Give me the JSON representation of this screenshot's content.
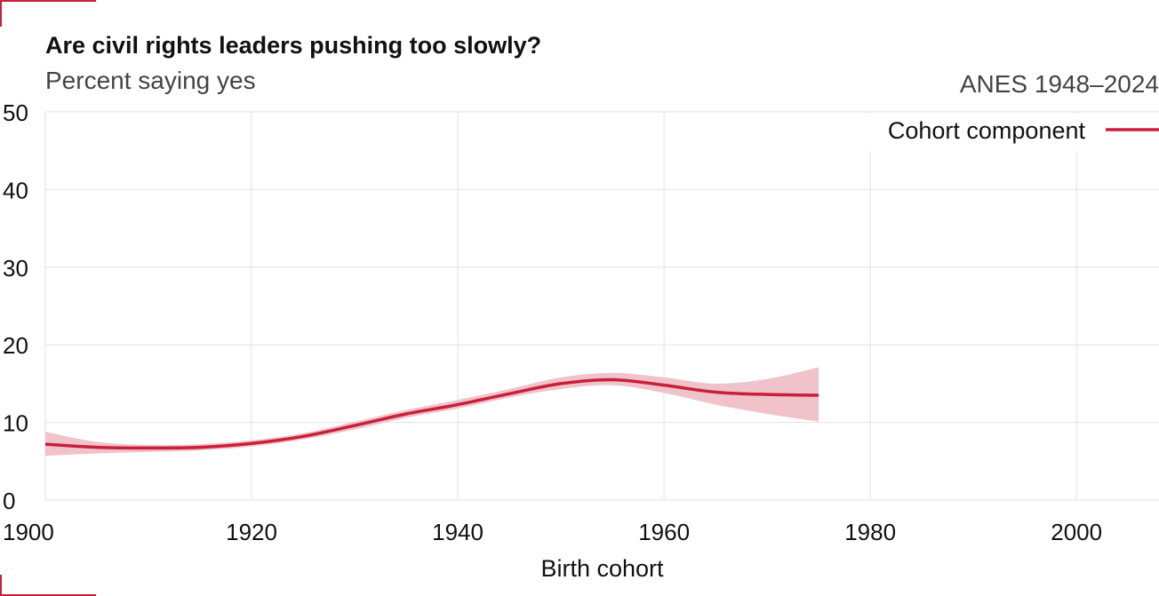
{
  "header": {
    "title": "Are civil rights leaders pushing too slowly?",
    "subtitle": "Percent saying yes",
    "source": "ANES 1948–2024"
  },
  "colors": {
    "accent": "#c8203b",
    "band": "#f0c2c9",
    "grid": "#e2e2e2",
    "text": "#111111",
    "muted": "#444444"
  },
  "chart_data": {
    "type": "line",
    "title": "Are civil rights leaders pushing too slowly?",
    "subtitle": "Percent saying yes",
    "xlabel": "Birth cohort",
    "ylabel": "",
    "xlim": [
      1900,
      2008
    ],
    "ylim": [
      0,
      50
    ],
    "x_ticks": [
      1900,
      1920,
      1940,
      1960,
      1980,
      2000
    ],
    "y_ticks": [
      0,
      10,
      20,
      30,
      40,
      50
    ],
    "grid": true,
    "legend_position": "top-right",
    "series": [
      {
        "name": "Cohort component",
        "color": "#c8203b",
        "x": [
          1900,
          1905,
          1910,
          1915,
          1920,
          1925,
          1930,
          1935,
          1940,
          1945,
          1950,
          1955,
          1960,
          1965,
          1970,
          1975
        ],
        "y": [
          7.2,
          6.8,
          6.7,
          6.8,
          7.3,
          8.2,
          9.6,
          11.1,
          12.3,
          13.7,
          15.0,
          15.5,
          14.8,
          13.9,
          13.6,
          13.5
        ],
        "lower": [
          5.7,
          6.0,
          6.2,
          6.4,
          6.9,
          7.8,
          9.1,
          10.6,
          11.8,
          13.2,
          14.3,
          14.8,
          13.8,
          12.3,
          11.1,
          10.1
        ],
        "upper": [
          8.8,
          7.5,
          7.1,
          7.2,
          7.7,
          8.6,
          10.1,
          11.6,
          12.9,
          14.3,
          15.8,
          16.4,
          15.8,
          15.0,
          15.6,
          17.1
        ]
      }
    ]
  }
}
